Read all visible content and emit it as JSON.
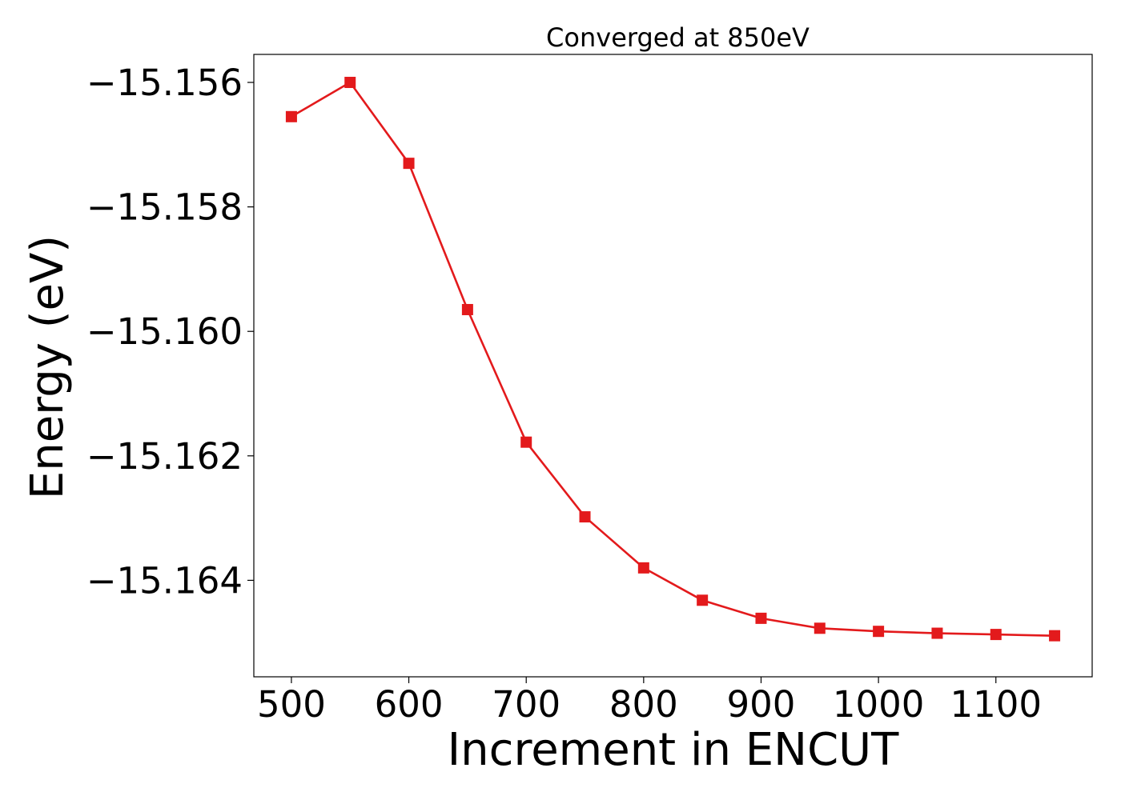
{
  "chart_data": {
    "type": "line",
    "title": "Converged at 850eV",
    "xlabel": "Increment in ENCUT",
    "ylabel": "Energy (eV)",
    "xlim": [
      468,
      1182
    ],
    "ylim": [
      -15.16555,
      -15.15555
    ],
    "xticks": [
      500,
      600,
      700,
      800,
      900,
      1000,
      1100
    ],
    "xtick_labels": [
      "500",
      "600",
      "700",
      "800",
      "900",
      "1000",
      "1100"
    ],
    "yticks": [
      -15.156,
      -15.158,
      -15.16,
      -15.162,
      -15.164
    ],
    "ytick_labels": [
      "−15.156",
      "−15.158",
      "−15.160",
      "−15.162",
      "−15.164"
    ],
    "grid": false,
    "series": [
      {
        "color": "#e31a1c",
        "marker": "square",
        "x": [
          500,
          550,
          600,
          650,
          700,
          750,
          800,
          850,
          900,
          950,
          1000,
          1050,
          1100,
          1150
        ],
        "y": [
          -15.15655,
          -15.156,
          -15.1573,
          -15.15965,
          -15.16178,
          -15.16298,
          -15.1638,
          -15.16432,
          -15.16461,
          -15.16477,
          -15.16482,
          -15.16485,
          -15.16487,
          -15.16489
        ]
      }
    ]
  }
}
